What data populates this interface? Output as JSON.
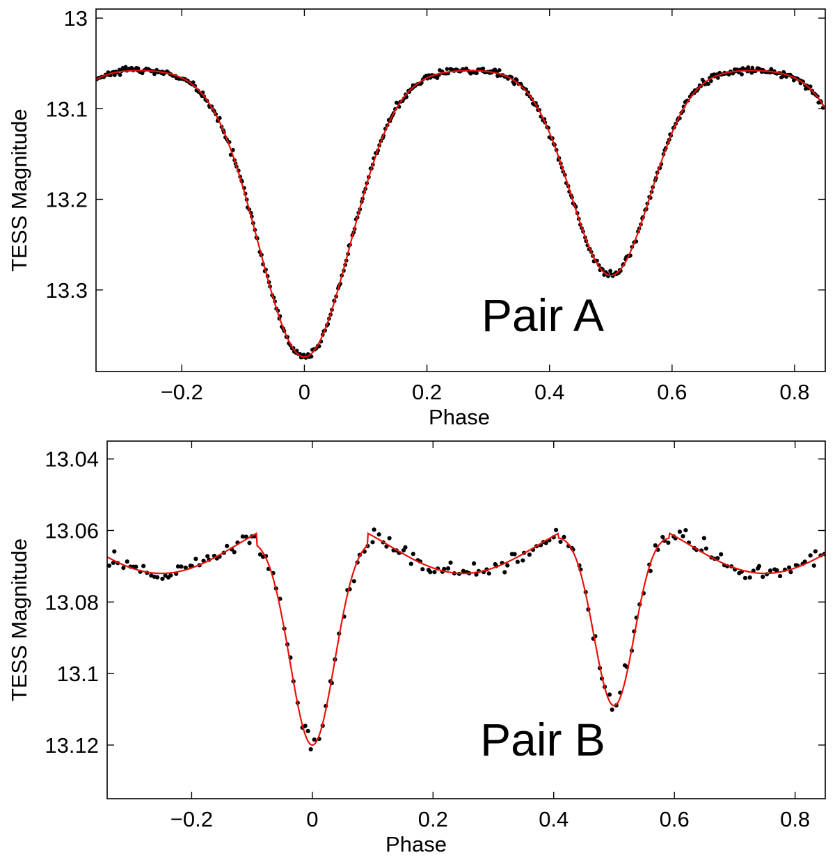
{
  "chart_data": [
    {
      "type": "scatter",
      "annotation": "Pair A",
      "xlabel": "Phase",
      "ylabel": "TESS Magnitude",
      "xlim": [
        -0.34,
        0.85
      ],
      "ylim": [
        13.39,
        12.99
      ],
      "y_reversed": true,
      "xticks": [
        -0.2,
        0,
        0.2,
        0.4,
        0.6,
        0.8
      ],
      "xtick_labels": [
        "−0.2",
        "0",
        "0.2",
        "0.4",
        "0.6",
        "0.8"
      ],
      "yticks": [
        13.0,
        13.1,
        13.2,
        13.3
      ],
      "ytick_labels": [
        "13",
        "13.1",
        "13.2",
        "13.3"
      ],
      "grid": false,
      "colors": {
        "points": "#000000",
        "model": "#e8120c"
      },
      "model": {
        "base": 13.057,
        "depth1": 0.317,
        "depth2": 0.227,
        "center1": 0.0,
        "center2": 0.5,
        "width1": 0.075,
        "width2": 0.065,
        "sin_amp": 0.0
      },
      "series": [
        {
          "kind": "points",
          "n": 520,
          "noise": 0.0018,
          "offset1": 0.006,
          "offset2": 0.0
        },
        {
          "kind": "line"
        }
      ]
    },
    {
      "type": "scatter",
      "annotation": "Pair B",
      "xlabel": "Phase",
      "ylabel": "TESS Magnitude",
      "xlim": [
        -0.34,
        0.85
      ],
      "ylim": [
        13.135,
        13.035
      ],
      "y_reversed": true,
      "xticks": [
        -0.2,
        0,
        0.2,
        0.4,
        0.6,
        0.8
      ],
      "xtick_labels": [
        "−0.2",
        "0",
        "0.2",
        "0.4",
        "0.6",
        "0.8"
      ],
      "yticks": [
        13.04,
        13.06,
        13.08,
        13.1,
        13.12
      ],
      "ytick_labels": [
        "13.04",
        "13.06",
        "13.08",
        "13.1",
        "13.12"
      ],
      "grid": false,
      "colors": {
        "points": "#000000",
        "model": "#e8120c"
      },
      "model": {
        "base": 13.056,
        "depth1": 0.064,
        "depth2": 0.053,
        "center1": 0.0,
        "center2": 0.5,
        "width1": 0.038,
        "width2": 0.034,
        "sin_amp": 0.016,
        "halfwidth": 0.092
      },
      "series": [
        {
          "kind": "points",
          "n": 205,
          "noise": 0.0013,
          "offset1": 0.0,
          "offset2": 0.0
        },
        {
          "kind": "line"
        }
      ]
    }
  ]
}
